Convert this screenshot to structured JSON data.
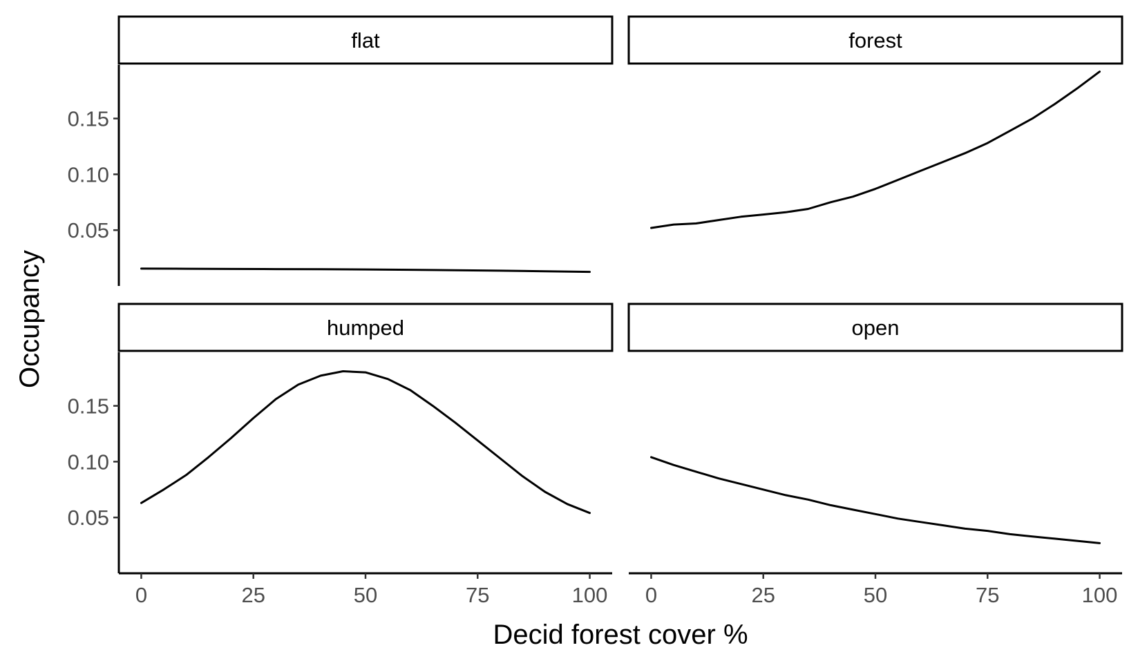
{
  "chart_data": {
    "type": "line",
    "xlabel": "Decid forest cover %",
    "ylabel": "Occupancy",
    "xlim": [
      -5,
      105
    ],
    "ylim": [
      0.0,
      0.198
    ],
    "x_ticks": [
      0,
      25,
      50,
      75,
      100
    ],
    "x_tick_labels": [
      "0",
      "25",
      "50",
      "75",
      "100"
    ],
    "y_ticks": [
      0.05,
      0.1,
      0.15
    ],
    "y_tick_labels": [
      "0.05",
      "0.10",
      "0.15"
    ],
    "grid": false,
    "legend": "none",
    "panels": [
      {
        "label": "flat",
        "x": [
          0,
          10,
          20,
          30,
          40,
          50,
          60,
          70,
          80,
          90,
          100
        ],
        "y": [
          0.0155,
          0.0154,
          0.0152,
          0.0151,
          0.015,
          0.0148,
          0.0145,
          0.0141,
          0.0137,
          0.0132,
          0.0126
        ]
      },
      {
        "label": "forest",
        "x": [
          0,
          5,
          10,
          15,
          20,
          25,
          30,
          35,
          40,
          45,
          50,
          55,
          60,
          65,
          70,
          75,
          80,
          85,
          90,
          95,
          100
        ],
        "y": [
          0.052,
          0.055,
          0.056,
          0.059,
          0.062,
          0.064,
          0.066,
          0.069,
          0.075,
          0.08,
          0.087,
          0.095,
          0.103,
          0.111,
          0.119,
          0.128,
          0.139,
          0.15,
          0.163,
          0.177,
          0.192
        ]
      },
      {
        "label": "humped",
        "x": [
          0,
          5,
          10,
          15,
          20,
          25,
          30,
          35,
          40,
          45,
          50,
          55,
          60,
          65,
          70,
          75,
          80,
          85,
          90,
          95,
          100
        ],
        "y": [
          0.063,
          0.075,
          0.088,
          0.104,
          0.121,
          0.139,
          0.156,
          0.169,
          0.177,
          0.181,
          0.18,
          0.174,
          0.164,
          0.15,
          0.135,
          0.119,
          0.103,
          0.087,
          0.073,
          0.062,
          0.054
        ]
      },
      {
        "label": "open",
        "x": [
          0,
          5,
          10,
          15,
          20,
          25,
          30,
          35,
          40,
          45,
          50,
          55,
          60,
          65,
          70,
          75,
          80,
          85,
          90,
          95,
          100
        ],
        "y": [
          0.104,
          0.097,
          0.091,
          0.085,
          0.08,
          0.075,
          0.07,
          0.066,
          0.061,
          0.057,
          0.053,
          0.049,
          0.046,
          0.043,
          0.04,
          0.038,
          0.035,
          0.033,
          0.031,
          0.029,
          0.027
        ]
      }
    ]
  }
}
